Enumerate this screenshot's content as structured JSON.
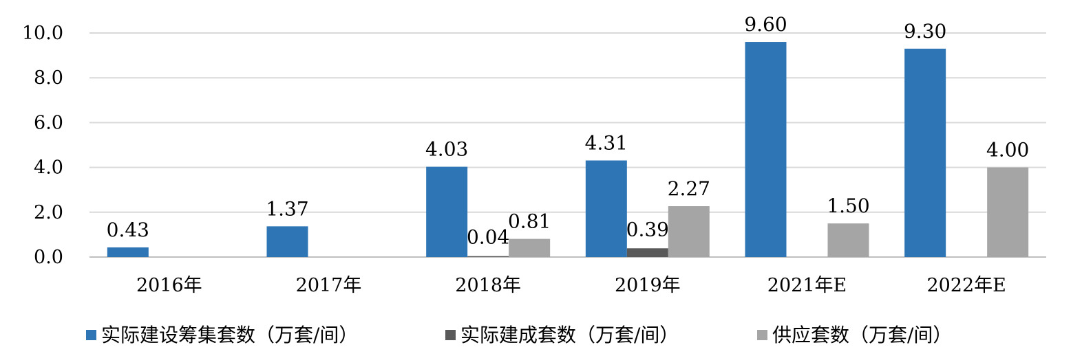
{
  "chart_data": {
    "type": "bar",
    "categories": [
      "2016年",
      "2017年",
      "2018年",
      "2019年",
      "2021年E",
      "2022年E"
    ],
    "series": [
      {
        "name": "实际建设筹集套数（万套/间）",
        "color": "#2E75B6",
        "values": [
          0.43,
          1.37,
          4.03,
          4.31,
          9.6,
          9.3
        ],
        "labels": [
          "0.43",
          "1.37",
          "4.03",
          "4.31",
          "9.60",
          "9.30"
        ]
      },
      {
        "name": "实际建成套数（万套/间）",
        "color": "#595959",
        "values": [
          null,
          null,
          0.04,
          0.39,
          null,
          null
        ],
        "labels": [
          "",
          "",
          "0.04",
          "0.39",
          "",
          ""
        ]
      },
      {
        "name": "供应套数（万套/间）",
        "color": "#A5A5A5",
        "values": [
          null,
          null,
          0.81,
          2.27,
          1.5,
          4.0
        ],
        "labels": [
          "",
          "",
          "0.81",
          "2.27",
          "1.50",
          "4.00"
        ]
      }
    ],
    "yticks": [
      "0.0",
      "2.0",
      "4.0",
      "6.0",
      "8.0",
      "10.0"
    ],
    "ylim": [
      0,
      10
    ],
    "grid": true,
    "legend": "bottom"
  }
}
